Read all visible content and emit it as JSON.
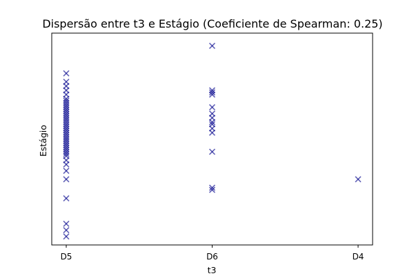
{
  "chart_data": {
    "type": "scatter",
    "title": "Dispersão entre t3 e Estágio (Coeficiente de Spearman: 0.25)",
    "xlabel": "t3",
    "ylabel": "Estágio",
    "x_categories": [
      "D5",
      "D6",
      "D4"
    ],
    "ylim": [
      0,
      100
    ],
    "y_ticks_visible": false,
    "grid": false,
    "legend": "none",
    "marker": "x",
    "marker_color": "#00008B",
    "series": [
      {
        "points": [
          {
            "x": "D5",
            "y": 81
          },
          {
            "x": "D5",
            "y": 77
          },
          {
            "x": "D5",
            "y": 75
          },
          {
            "x": "D5",
            "y": 73
          },
          {
            "x": "D5",
            "y": 71
          },
          {
            "x": "D5",
            "y": 69
          },
          {
            "x": "D5",
            "y": 68
          },
          {
            "x": "D5",
            "y": 67
          },
          {
            "x": "D5",
            "y": 66
          },
          {
            "x": "D5",
            "y": 65
          },
          {
            "x": "D5",
            "y": 64
          },
          {
            "x": "D5",
            "y": 63
          },
          {
            "x": "D5",
            "y": 62
          },
          {
            "x": "D5",
            "y": 61
          },
          {
            "x": "D5",
            "y": 60
          },
          {
            "x": "D5",
            "y": 59
          },
          {
            "x": "D5",
            "y": 58
          },
          {
            "x": "D5",
            "y": 57
          },
          {
            "x": "D5",
            "y": 56
          },
          {
            "x": "D5",
            "y": 55
          },
          {
            "x": "D5",
            "y": 54
          },
          {
            "x": "D5",
            "y": 53
          },
          {
            "x": "D5",
            "y": 52
          },
          {
            "x": "D5",
            "y": 51
          },
          {
            "x": "D5",
            "y": 50
          },
          {
            "x": "D5",
            "y": 49
          },
          {
            "x": "D5",
            "y": 48
          },
          {
            "x": "D5",
            "y": 47
          },
          {
            "x": "D5",
            "y": 46
          },
          {
            "x": "D5",
            "y": 45
          },
          {
            "x": "D5",
            "y": 44
          },
          {
            "x": "D5",
            "y": 43
          },
          {
            "x": "D5",
            "y": 42
          },
          {
            "x": "D5",
            "y": 40
          },
          {
            "x": "D5",
            "y": 38
          },
          {
            "x": "D5",
            "y": 35
          },
          {
            "x": "D5",
            "y": 31
          },
          {
            "x": "D5",
            "y": 22
          },
          {
            "x": "D5",
            "y": 10
          },
          {
            "x": "D5",
            "y": 7
          },
          {
            "x": "D5",
            "y": 4
          },
          {
            "x": "D6",
            "y": 94
          },
          {
            "x": "D6",
            "y": 73
          },
          {
            "x": "D6",
            "y": 72
          },
          {
            "x": "D6",
            "y": 71
          },
          {
            "x": "D6",
            "y": 65
          },
          {
            "x": "D6",
            "y": 62
          },
          {
            "x": "D6",
            "y": 60
          },
          {
            "x": "D6",
            "y": 58
          },
          {
            "x": "D6",
            "y": 57
          },
          {
            "x": "D6",
            "y": 55
          },
          {
            "x": "D6",
            "y": 53
          },
          {
            "x": "D6",
            "y": 44
          },
          {
            "x": "D6",
            "y": 27
          },
          {
            "x": "D6",
            "y": 26
          },
          {
            "x": "D4",
            "y": 31
          }
        ]
      }
    ]
  }
}
